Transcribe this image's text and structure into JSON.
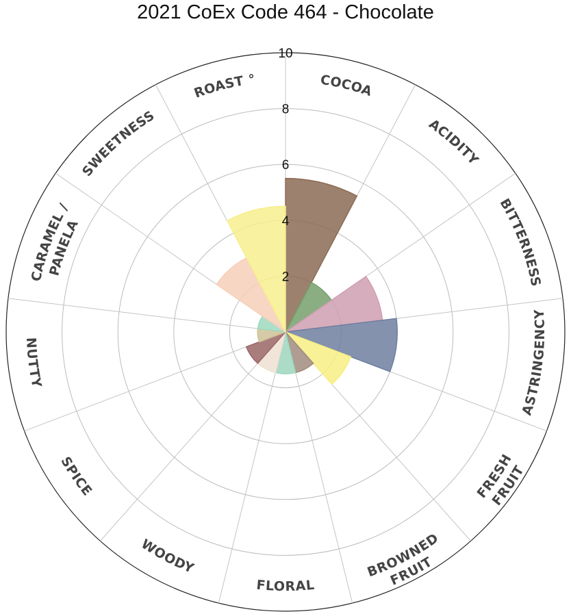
{
  "chart_data": {
    "type": "polar-bar",
    "title": "2021 CoEx Code 464 - Chocolate",
    "rlim": [
      0,
      10
    ],
    "rticks": [
      "2",
      "4",
      "6",
      "8",
      "10"
    ],
    "grid": true,
    "categories": [
      {
        "lines": [
          "COCOA"
        ],
        "value": 5.5,
        "color": "#8B6B55"
      },
      {
        "lines": [
          "ACIDITY"
        ],
        "value": 2.0,
        "color": "#76A06C"
      },
      {
        "lines": [
          "BITTERNESS"
        ],
        "value": 3.5,
        "color": "#CF9FB0"
      },
      {
        "lines": [
          "ASTRINGENCY"
        ],
        "value": 4.0,
        "color": "#6E7FA0"
      },
      {
        "lines": [
          "FRESH",
          "FRUIT"
        ],
        "value": 2.5,
        "color": "#F7EF84"
      },
      {
        "lines": [
          "BROWNED",
          "FRUIT"
        ],
        "value": 1.5,
        "color": "#A08C7D"
      },
      {
        "lines": [
          "FLORAL"
        ],
        "value": 1.5,
        "color": "#9DD6BE"
      },
      {
        "lines": [
          "WOODY"
        ],
        "value": 1.5,
        "color": "#EFE0D2"
      },
      {
        "lines": [
          "SPICE"
        ],
        "value": 1.5,
        "color": "#9A6665"
      },
      {
        "lines": [
          "NUTTY"
        ],
        "value": 1.0,
        "color": "#CFC298"
      },
      {
        "lines": [
          "CARAMEL /",
          "PANELA"
        ],
        "value": 1.0,
        "color": "#9FD9BE"
      },
      {
        "lines": [
          "SWEETNESS"
        ],
        "value": 3.0,
        "color": "#F6CFB8"
      },
      {
        "lines": [
          "ROAST °"
        ],
        "value": 4.5,
        "color": "#F7EF8E"
      }
    ]
  }
}
